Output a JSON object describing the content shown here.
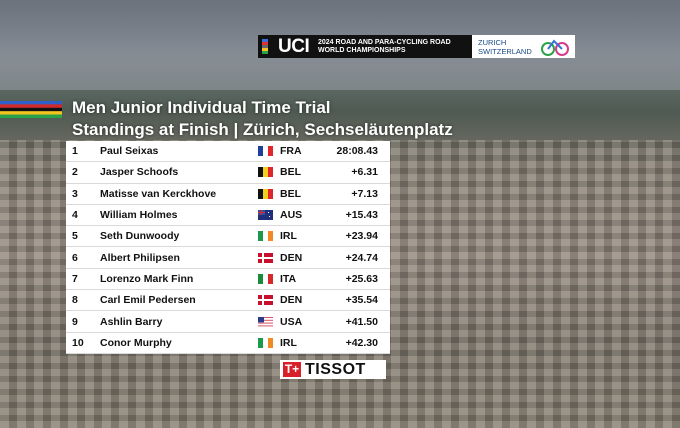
{
  "header": {
    "logo": "UCI",
    "event_lines": [
      "2024 ROAD AND PARA-CYCLING ROAD",
      "WORLD CHAMPIONSHIPS"
    ],
    "location_lines": [
      "ZURICH",
      "SWITZERLAND"
    ]
  },
  "title": "Men Junior Individual Time Trial",
  "subtitle": "Standings at Finish | Zürich, Sechseläutenplatz",
  "table": {
    "rows": [
      [
        1,
        "Paul Seixas",
        "FRA",
        "28:08.43"
      ],
      [
        2,
        "Jasper Schoofs",
        "BEL",
        "+6.31"
      ],
      [
        3,
        "Matisse van Kerckhove",
        "BEL",
        "+7.13"
      ],
      [
        4,
        "William Holmes",
        "AUS",
        "+15.43"
      ],
      [
        5,
        "Seth Dunwoody",
        "IRL",
        "+23.94"
      ],
      [
        6,
        "Albert Philipsen",
        "DEN",
        "+24.74"
      ],
      [
        7,
        "Lorenzo Mark Finn",
        "ITA",
        "+25.63"
      ],
      [
        8,
        "Carl Emil Pedersen",
        "DEN",
        "+35.54"
      ],
      [
        9,
        "Ashlin Barry",
        "USA",
        "+41.50"
      ],
      [
        10,
        "Conor Murphy",
        "IRL",
        "+42.30"
      ]
    ]
  },
  "sponsor": "TISSOT"
}
